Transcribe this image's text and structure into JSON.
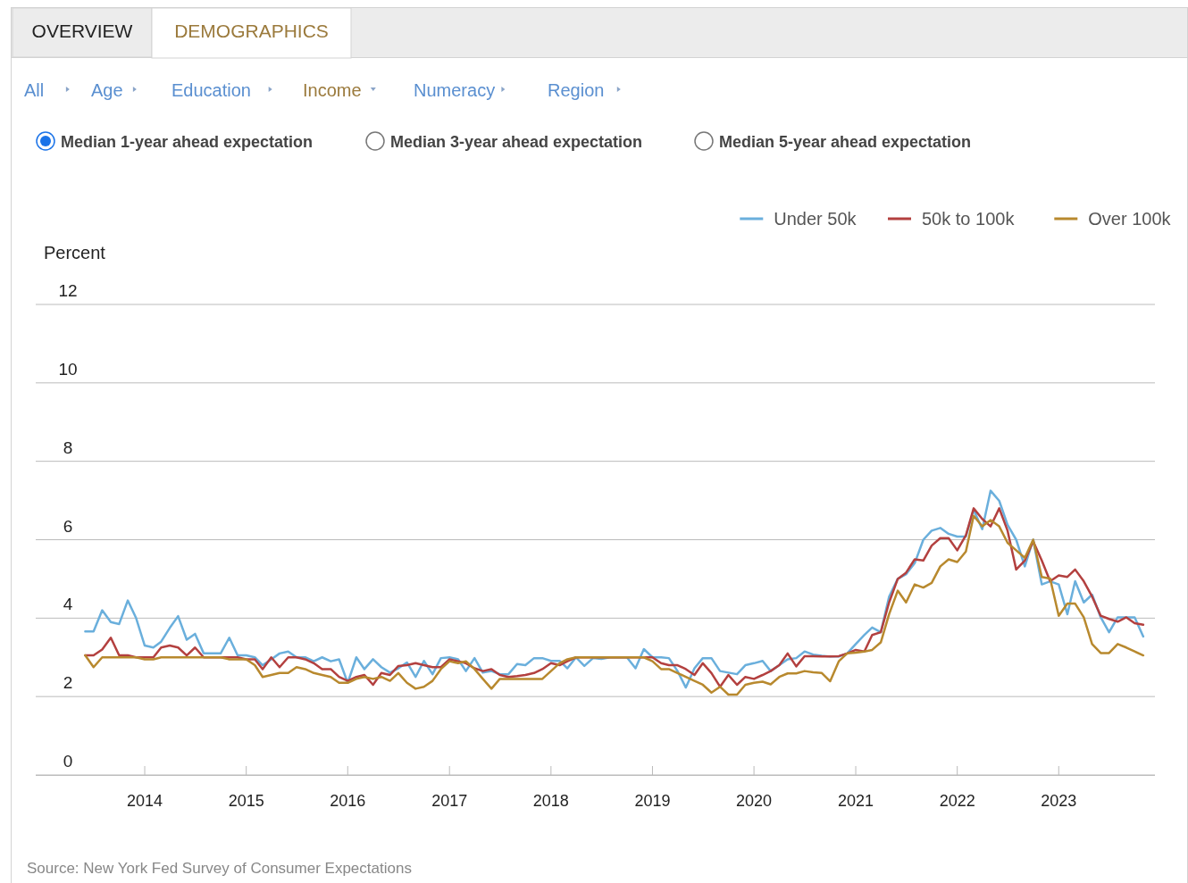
{
  "chart_data": {
    "type": "line",
    "ylabel": "Percent",
    "ylim": [
      0,
      12
    ],
    "yticks": [
      0,
      2,
      4,
      6,
      8,
      10,
      12
    ],
    "xlim": [
      "2012-12-05",
      "2023-12-13"
    ],
    "xticks": [
      "2014",
      "2015",
      "2016",
      "2017",
      "2018",
      "2019",
      "2020",
      "2021",
      "2022",
      "2023"
    ],
    "grid": "y",
    "legend": "top right",
    "x": [
      "2013-06",
      "2013-07",
      "2013-08",
      "2013-09",
      "2013-10",
      "2013-11",
      "2013-12",
      "2014-01",
      "2014-02",
      "2014-03",
      "2014-04",
      "2014-05",
      "2014-06",
      "2014-07",
      "2014-08",
      "2014-09",
      "2014-10",
      "2014-11",
      "2014-12",
      "2015-01",
      "2015-02",
      "2015-03",
      "2015-04",
      "2015-05",
      "2015-06",
      "2015-07",
      "2015-08",
      "2015-09",
      "2015-10",
      "2015-11",
      "2015-12",
      "2016-01",
      "2016-02",
      "2016-03",
      "2016-04",
      "2016-05",
      "2016-06",
      "2016-07",
      "2016-08",
      "2016-09",
      "2016-10",
      "2016-11",
      "2016-12",
      "2017-01",
      "2017-02",
      "2017-03",
      "2017-04",
      "2017-05",
      "2017-06",
      "2017-07",
      "2017-08",
      "2017-09",
      "2017-10",
      "2017-11",
      "2017-12",
      "2018-01",
      "2018-02",
      "2018-03",
      "2018-04",
      "2018-05",
      "2018-06",
      "2018-07",
      "2018-08",
      "2018-09",
      "2018-10",
      "2018-11",
      "2018-12",
      "2019-01",
      "2019-02",
      "2019-03",
      "2019-04",
      "2019-05",
      "2019-06",
      "2019-07",
      "2019-08",
      "2019-09",
      "2019-10",
      "2019-11",
      "2019-12",
      "2020-01",
      "2020-02",
      "2020-03",
      "2020-04",
      "2020-05",
      "2020-06",
      "2020-07",
      "2020-08",
      "2020-09",
      "2020-10",
      "2020-11",
      "2020-12",
      "2021-01",
      "2021-02",
      "2021-03",
      "2021-04",
      "2021-05",
      "2021-06",
      "2021-07",
      "2021-08",
      "2021-09",
      "2021-10",
      "2021-11",
      "2021-12",
      "2022-01",
      "2022-02",
      "2022-03",
      "2022-04",
      "2022-05",
      "2022-06",
      "2022-07",
      "2022-08",
      "2022-09",
      "2022-10",
      "2022-11",
      "2022-12",
      "2023-01",
      "2023-02",
      "2023-03",
      "2023-04",
      "2023-05",
      "2023-06",
      "2023-07",
      "2023-08",
      "2023-09",
      "2023-10",
      "2023-11"
    ],
    "marker": "none",
    "line_style": "solid",
    "annotations": [
      "OVERVIEW",
      "DEMOGRAPHICS",
      "All",
      "Age",
      "Education",
      "Income",
      "Numeracy",
      "Region",
      "Median 1-year ahead expectation",
      "Median 3-year ahead expectation",
      "Median 5-year ahead expectation",
      "Source: New York Fed Survey of Consumer Expectations"
    ],
    "series": [
      {
        "name": "Under 50k",
        "color": "#6aafdc",
        "values": [
          3.66,
          3.66,
          4.2,
          3.9,
          3.85,
          4.45,
          4.0,
          3.3,
          3.25,
          3.4,
          3.75,
          4.05,
          3.45,
          3.6,
          3.1,
          3.1,
          3.1,
          3.5,
          3.05,
          3.05,
          3.0,
          2.8,
          2.95,
          3.1,
          3.15,
          3.0,
          3.0,
          2.9,
          3.0,
          2.9,
          2.95,
          2.35,
          3.0,
          2.7,
          2.95,
          2.75,
          2.61,
          2.72,
          2.87,
          2.5,
          2.91,
          2.57,
          2.98,
          3.0,
          2.95,
          2.65,
          2.98,
          2.61,
          2.65,
          2.57,
          2.57,
          2.83,
          2.8,
          2.98,
          2.98,
          2.91,
          2.91,
          2.72,
          3.0,
          2.78,
          2.98,
          2.96,
          3.0,
          3.0,
          3.0,
          2.72,
          3.21,
          3.0,
          3.0,
          2.98,
          2.65,
          2.23,
          2.72,
          2.98,
          2.98,
          2.65,
          2.61,
          2.57,
          2.8,
          2.85,
          2.91,
          2.65,
          2.8,
          2.95,
          2.98,
          3.15,
          3.07,
          3.04,
          3.02,
          3.02,
          3.1,
          3.34,
          3.57,
          3.76,
          3.64,
          4.55,
          5.0,
          5.12,
          5.4,
          6.0,
          6.23,
          6.3,
          6.15,
          6.08,
          6.08,
          6.76,
          6.27,
          7.25,
          6.99,
          6.38,
          6.0,
          5.32,
          6.0,
          4.86,
          4.94,
          4.86,
          4.1,
          4.94,
          4.4,
          4.6,
          4.02,
          3.64,
          4.02,
          4.02,
          4.02,
          3.53
        ]
      },
      {
        "name": "50k to 100k",
        "color": "#b3403f",
        "values": [
          3.05,
          3.05,
          3.2,
          3.5,
          3.05,
          3.05,
          3.0,
          3.0,
          3.0,
          3.25,
          3.3,
          3.25,
          3.05,
          3.25,
          3.0,
          3.0,
          3.0,
          3.0,
          3.0,
          2.95,
          2.95,
          2.7,
          3.0,
          2.75,
          3.0,
          3.0,
          2.95,
          2.85,
          2.7,
          2.7,
          2.5,
          2.4,
          2.5,
          2.55,
          2.3,
          2.6,
          2.55,
          2.78,
          2.8,
          2.85,
          2.8,
          2.75,
          2.75,
          2.95,
          2.9,
          2.85,
          2.72,
          2.65,
          2.7,
          2.55,
          2.5,
          2.52,
          2.55,
          2.6,
          2.7,
          2.85,
          2.8,
          2.9,
          3.0,
          3.0,
          3.0,
          3.0,
          3.0,
          3.0,
          3.0,
          3.0,
          3.0,
          3.0,
          2.85,
          2.8,
          2.8,
          2.7,
          2.55,
          2.85,
          2.6,
          2.25,
          2.55,
          2.3,
          2.5,
          2.45,
          2.55,
          2.65,
          2.8,
          3.1,
          2.77,
          3.03,
          3.03,
          3.02,
          3.02,
          3.03,
          3.1,
          3.19,
          3.15,
          3.57,
          3.64,
          4.4,
          5.0,
          5.16,
          5.5,
          5.47,
          5.85,
          6.04,
          6.04,
          5.73,
          6.11,
          6.8,
          6.53,
          6.34,
          6.8,
          6.23,
          5.24,
          5.47,
          5.96,
          5.47,
          4.94,
          5.09,
          5.05,
          5.24,
          4.94,
          4.55,
          4.06,
          3.98,
          3.91,
          4.02,
          3.87,
          3.83
        ]
      },
      {
        "name": "Over 100k",
        "color": "#b8892e",
        "values": [
          3.05,
          2.75,
          3.0,
          3.0,
          3.0,
          3.0,
          3.0,
          2.95,
          2.95,
          3.0,
          3.0,
          3.0,
          3.0,
          3.0,
          3.0,
          3.0,
          3.0,
          2.95,
          2.95,
          2.95,
          2.8,
          2.5,
          2.55,
          2.6,
          2.6,
          2.75,
          2.7,
          2.6,
          2.55,
          2.5,
          2.35,
          2.35,
          2.45,
          2.5,
          2.45,
          2.5,
          2.4,
          2.6,
          2.35,
          2.2,
          2.25,
          2.4,
          2.7,
          2.9,
          2.85,
          2.9,
          2.7,
          2.45,
          2.2,
          2.45,
          2.45,
          2.45,
          2.45,
          2.45,
          2.45,
          2.65,
          2.85,
          2.95,
          3.0,
          3.0,
          3.0,
          3.0,
          3.0,
          3.0,
          3.0,
          3.0,
          3.0,
          2.9,
          2.7,
          2.7,
          2.6,
          2.5,
          2.4,
          2.3,
          2.1,
          2.25,
          2.05,
          2.05,
          2.3,
          2.35,
          2.38,
          2.31,
          2.5,
          2.59,
          2.59,
          2.65,
          2.62,
          2.6,
          2.39,
          2.9,
          3.1,
          3.12,
          3.15,
          3.19,
          3.38,
          4.1,
          4.7,
          4.4,
          4.86,
          4.78,
          4.9,
          5.32,
          5.5,
          5.43,
          5.7,
          6.61,
          6.34,
          6.5,
          6.34,
          5.92,
          5.73,
          5.54,
          6.0,
          5.05,
          5.01,
          4.06,
          4.37,
          4.37,
          4.02,
          3.34,
          3.11,
          3.11,
          3.34,
          3.25,
          3.15,
          3.05
        ]
      }
    ]
  }
}
